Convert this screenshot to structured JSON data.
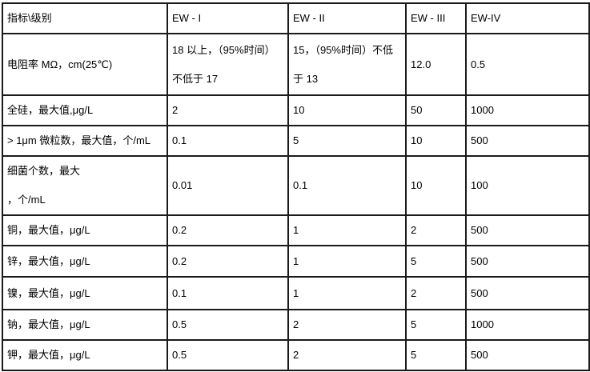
{
  "page": {
    "description": "Specification table of electronic-grade water quality indicators by grade",
    "background_color": "#ffffff",
    "border_color": "#000000",
    "text_color": "#000000"
  },
  "table": {
    "columns": [
      "指标\\级别",
      "EW - I",
      "EW - II",
      "EW - III",
      "EW-IV"
    ],
    "rows": [
      {
        "label": "电阻率 MΩ，cm(25℃)",
        "values": [
          "18 以上，（95%时间）不低于 17",
          "15，（95%时间）不低于 13",
          "12.0",
          "0.5"
        ]
      },
      {
        "label": "全硅，最大值,μg/L",
        "values": [
          "2",
          "10",
          "50",
          "1000"
        ]
      },
      {
        "label": "> 1μm 微粒数，最大值，个/mL",
        "values": [
          "0.1",
          "5",
          "10",
          "500"
        ]
      },
      {
        "label": "细菌个数，最大\n，个/mL",
        "values": [
          "0.01",
          "0.1",
          "10",
          "100"
        ]
      },
      {
        "label": "铜，最大值，μg/L",
        "values": [
          "0.2",
          "1",
          "2",
          "500"
        ]
      },
      {
        "label": "锌，最大值，μg/L",
        "values": [
          "0.2",
          "1",
          "5",
          "500"
        ]
      },
      {
        "label": "镍，最大值，μg/L",
        "values": [
          "0.1",
          "1",
          "2",
          "500"
        ]
      },
      {
        "label": "钠，最大值，μg/L",
        "values": [
          "0.5",
          "2",
          "5",
          "1000"
        ]
      },
      {
        "label": "钾，最大值，μg/L",
        "values": [
          "0.5",
          "2",
          "5",
          "500"
        ]
      }
    ]
  }
}
